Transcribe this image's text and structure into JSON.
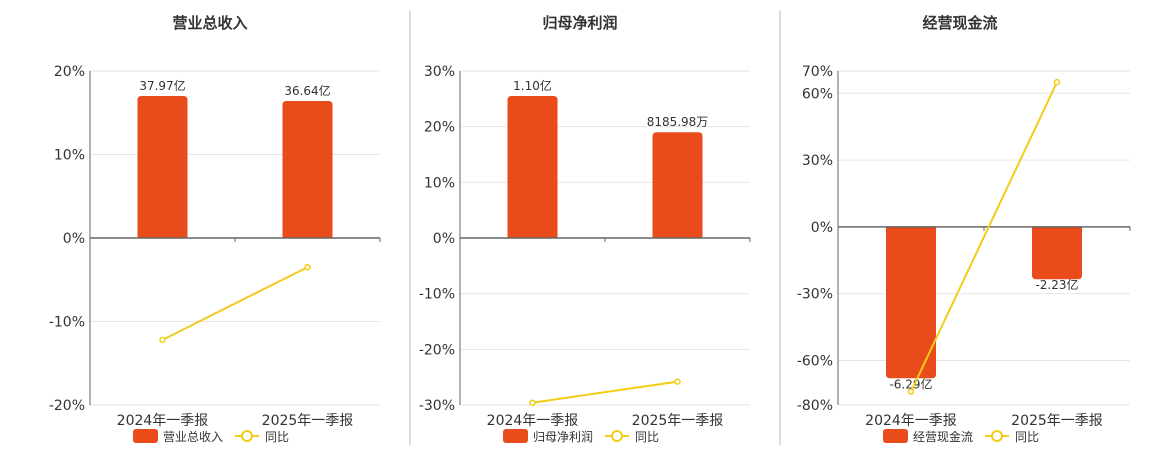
{
  "colors": {
    "bar": "#E94B1B",
    "line": "#F2CC15",
    "grid": "#E6E6E6",
    "axis": "#666666",
    "divider": "#BBBBBB"
  },
  "chart_data": [
    {
      "type": "bar",
      "title": "营业总收入",
      "categories": [
        "2024年一季报",
        "2025年一季报"
      ],
      "series": [
        {
          "name": "营业总收入",
          "type": "bar",
          "values": [
            17.0,
            16.4
          ],
          "labels": [
            "37.97亿",
            "36.64亿"
          ]
        },
        {
          "name": "同比",
          "type": "line",
          "values": [
            -12.2,
            -3.5
          ]
        }
      ],
      "ylim": [
        -20,
        20
      ],
      "yticks": [
        20,
        10,
        0,
        -10,
        -20
      ],
      "ytick_labels": [
        "20%",
        "10%",
        "0%",
        "-10%",
        "-20%"
      ],
      "label_position": "above",
      "grid": true,
      "legend": "bottom"
    },
    {
      "type": "bar",
      "title": "归母净利润",
      "categories": [
        "2024年一季报",
        "2025年一季报"
      ],
      "series": [
        {
          "name": "归母净利润",
          "type": "bar",
          "values": [
            25.5,
            19.0
          ],
          "labels": [
            "1.10亿",
            "8185.98万"
          ]
        },
        {
          "name": "同比",
          "type": "line",
          "values": [
            -29.6,
            -25.8
          ]
        }
      ],
      "ylim": [
        -30,
        30
      ],
      "yticks": [
        30,
        20,
        10,
        0,
        -10,
        -20,
        -30
      ],
      "ytick_labels": [
        "30%",
        "20%",
        "10%",
        "0%",
        "-10%",
        "-20%",
        "-30%"
      ],
      "label_position": "above",
      "grid": true,
      "legend": "bottom"
    },
    {
      "type": "bar",
      "title": "经营现金流",
      "categories": [
        "2024年一季报",
        "2025年一季报"
      ],
      "series": [
        {
          "name": "经营现金流",
          "type": "bar",
          "values": [
            -68.0,
            -23.5
          ],
          "labels": [
            "-6.29亿",
            "-2.23亿"
          ]
        },
        {
          "name": "同比",
          "type": "line",
          "values": [
            -74.0,
            65.0
          ]
        }
      ],
      "ylim": [
        -80,
        70
      ],
      "yticks": [
        70,
        60,
        30,
        0,
        -30,
        -60,
        -80
      ],
      "ytick_labels": [
        "70%",
        "60%",
        "30%",
        "0%",
        "-30%",
        "-60%",
        "-80%"
      ],
      "label_position": "below",
      "grid": true,
      "legend": "bottom"
    }
  ]
}
